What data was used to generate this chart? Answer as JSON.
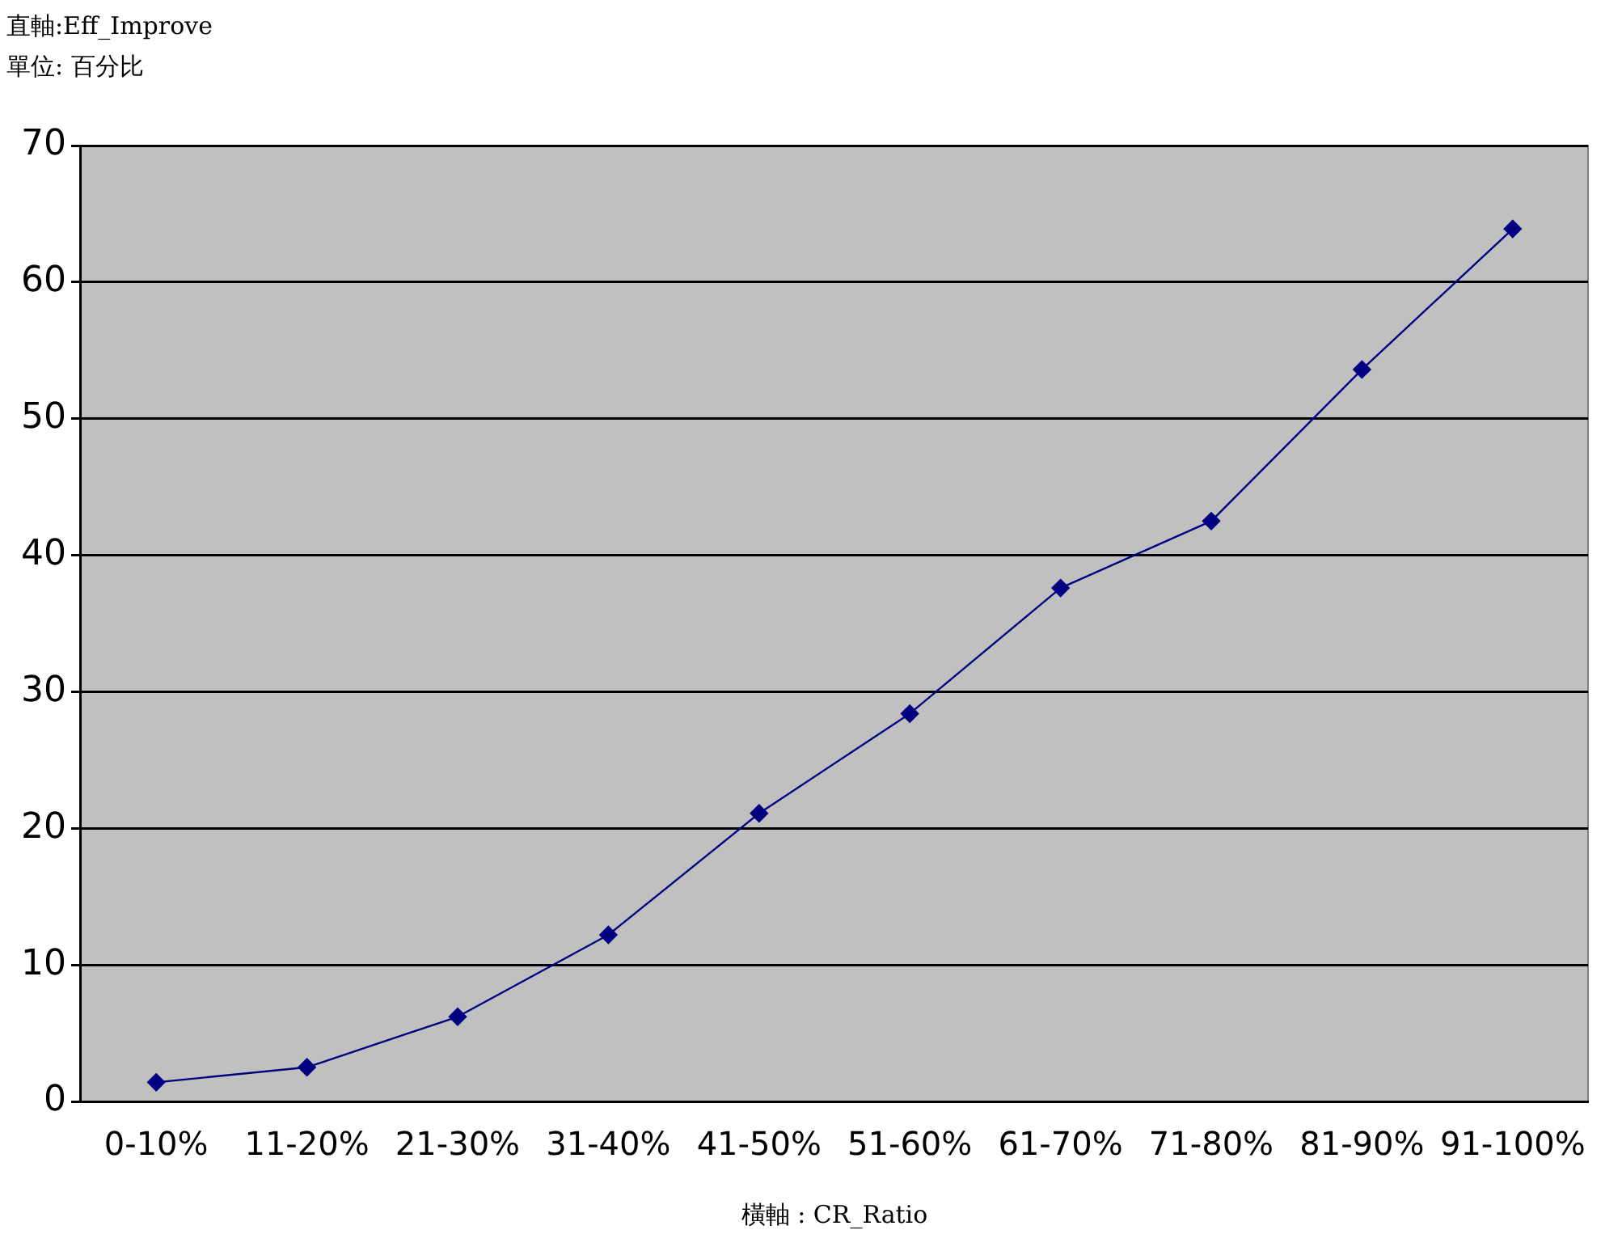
{
  "chart_data": {
    "type": "line",
    "title": "直軸:Eff_Improve",
    "subtitle": "單位: 百分比",
    "xlabel": "橫軸 : CR_Ratio",
    "categories": [
      "0-10%",
      "11-20%",
      "21-30%",
      "31-40%",
      "41-50%",
      "51-60%",
      "61-70%",
      "71-80%",
      "81-90%",
      "91-100%"
    ],
    "series": [
      {
        "color": "#000080",
        "values": [
          1.4,
          2.5,
          6.2,
          12.2,
          21.1,
          28.4,
          37.6,
          42.5,
          53.6,
          63.9
        ]
      }
    ],
    "ylim": [
      0,
      70
    ],
    "yticks": [
      0,
      10,
      20,
      30,
      40,
      50,
      60,
      70
    ],
    "grid": "y",
    "legend": false,
    "marker": "diamond",
    "line_style": "solid"
  }
}
